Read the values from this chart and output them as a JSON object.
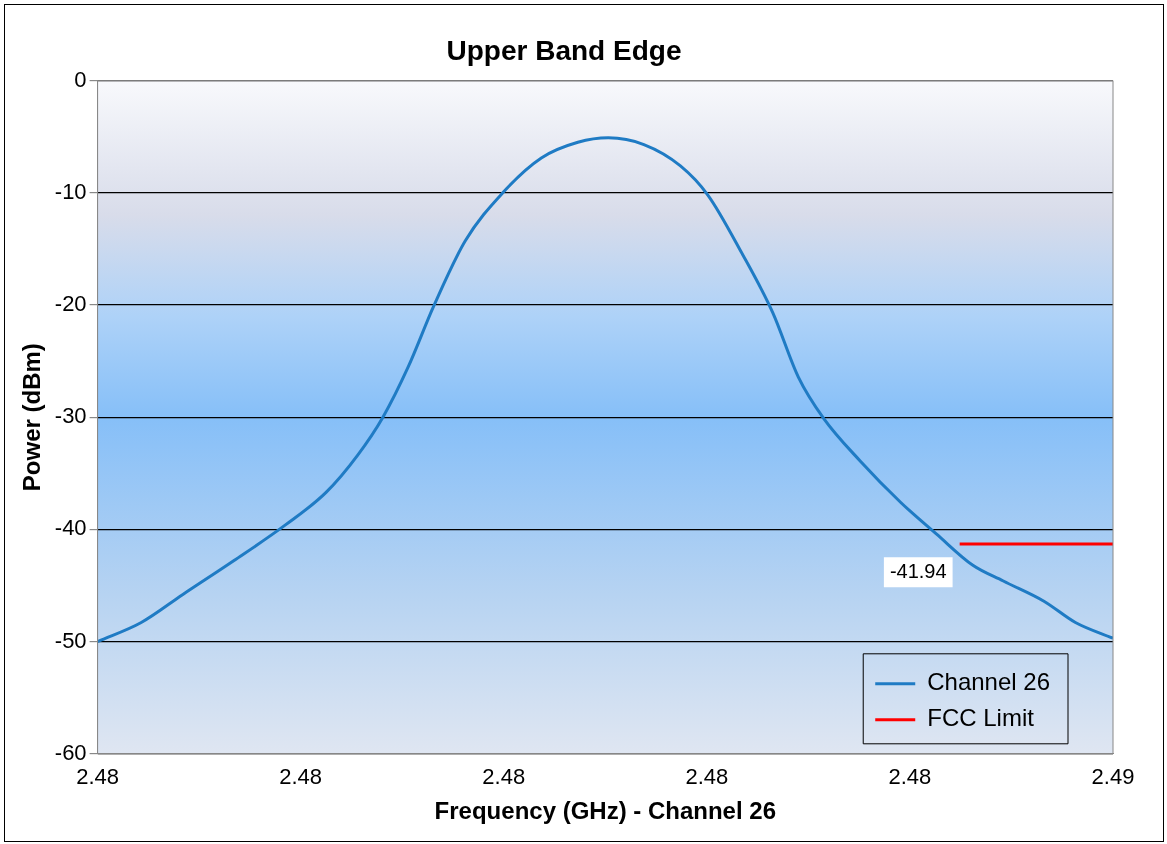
{
  "chart_data": {
    "type": "line",
    "title": "Upper Band Edge",
    "xlabel": "Frequency (GHz) - Channel 26",
    "ylabel": "Power (dBm)",
    "xlim": [
      2.4751,
      2.4851
    ],
    "xticks": [
      {
        "value": 2.4751,
        "label": "2.48"
      },
      {
        "value": 2.4771,
        "label": "2.48"
      },
      {
        "value": 2.4791,
        "label": "2.48"
      },
      {
        "value": 2.4811,
        "label": "2.48"
      },
      {
        "value": 2.4831,
        "label": "2.48"
      },
      {
        "value": 2.4851,
        "label": "2.49"
      }
    ],
    "ylim": [
      -60,
      0
    ],
    "yticks": [
      -60,
      -50,
      -40,
      -30,
      -20,
      -10,
      0
    ],
    "grid": "y",
    "legend": "bottom right",
    "marker": "none",
    "line_style": "solid",
    "series": [
      {
        "name": "Channel 26",
        "color": "#1f7bc4",
        "x": [
          2.4751,
          2.47553,
          2.47594,
          2.47644,
          2.47695,
          2.47735,
          2.47766,
          2.47791,
          2.47816,
          2.47841,
          2.47872,
          2.47909,
          2.47947,
          2.47983,
          2.48013,
          2.48048,
          2.48084,
          2.48111,
          2.48144,
          2.48175,
          2.482,
          2.48225,
          2.48261,
          2.48301,
          2.48336,
          2.48372,
          2.48402,
          2.48442,
          2.48473,
          2.4851
        ],
        "values": [
          -50,
          -48.3,
          -45.8,
          -42.8,
          -39.6,
          -36.7,
          -33.4,
          -30,
          -25.5,
          -20.1,
          -14.3,
          -10,
          -6.9,
          -5.5,
          -5.1,
          -5.7,
          -7.6,
          -10.2,
          -15.3,
          -20.7,
          -26.4,
          -30.1,
          -33.9,
          -37.6,
          -40.4,
          -43.2,
          -44.6,
          -46.4,
          -48.3,
          -49.7
        ]
      },
      {
        "name": "FCC Limit",
        "color": "#ff0000",
        "x": [
          2.48359,
          2.4851
        ],
        "values": [
          -41.3,
          -41.3
        ]
      }
    ],
    "annotations": [
      {
        "text": "-41.94",
        "x": 2.48354,
        "y": -41.94
      }
    ]
  }
}
